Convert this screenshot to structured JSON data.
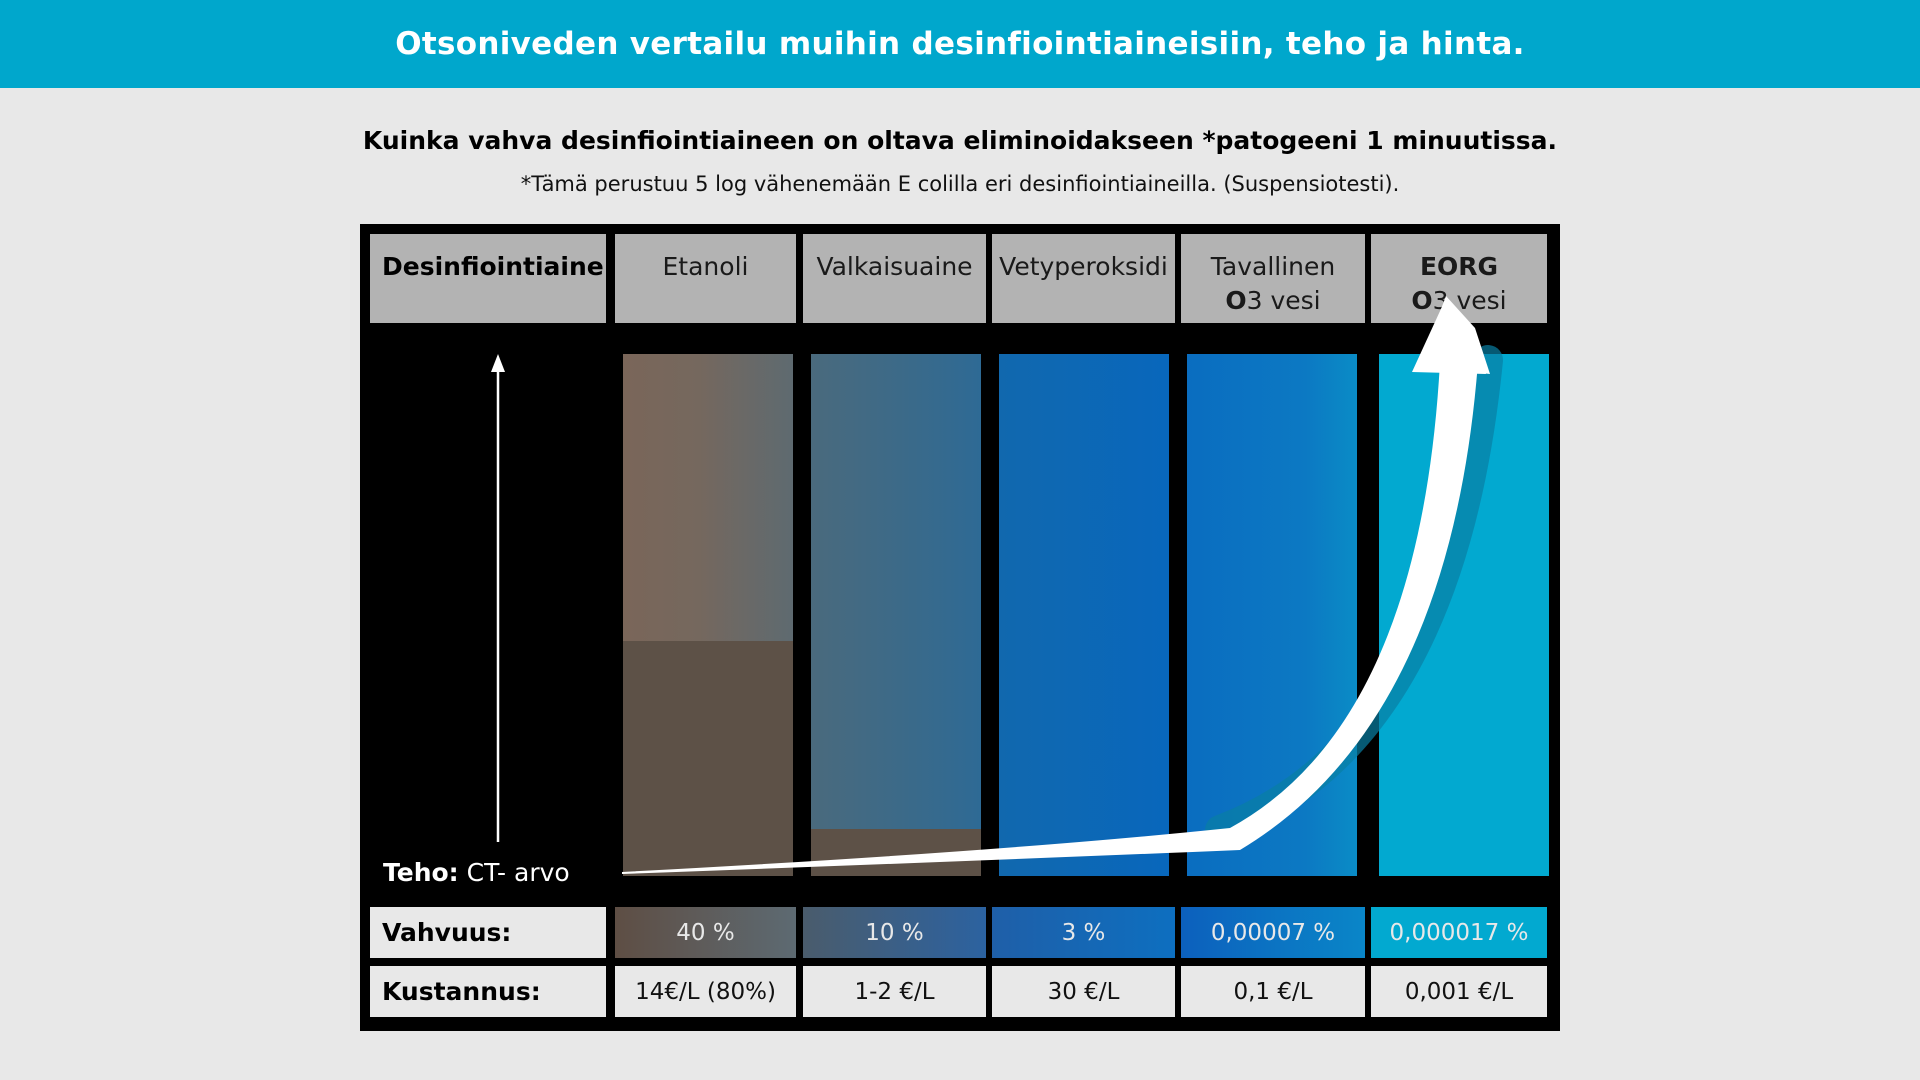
{
  "banner": {
    "title": "Otsoniveden vertailu muihin desinfiointiaineisiin, teho ja hinta."
  },
  "headline": "Kuinka vahva desinfiointiaineen on oltava eliminoidakseen *patogeeni 1 minuutissa.",
  "footnote": "*Tämä perustuu 5 log vähenemään E colilla eri desinfiointiaineilla. (Suspensiotesti).",
  "table": {
    "header_label": "Desinfiointiaine:",
    "columns": [
      {
        "name_bold": "",
        "name": "Etanoli",
        "name2_bold": "",
        "name2": "",
        "strength": "40 %",
        "cost": "14€/L (80%)",
        "level": 0.45
      },
      {
        "name_bold": "",
        "name": "Valkaisuaine",
        "name2_bold": "",
        "name2": "",
        "strength": "10 %",
        "cost": "1-2 €/L",
        "level": 0.09
      },
      {
        "name_bold": "",
        "name": "Vetyperoksidi",
        "name2_bold": "",
        "name2": "",
        "strength": "3 %",
        "cost": "30 €/L",
        "level": 0
      },
      {
        "name_bold": "",
        "name": "Tavallinen",
        "name2_bold": "O",
        "name2": "3 vesi",
        "strength": "0,00007 %",
        "cost": "0,1 €/L",
        "level": 0
      },
      {
        "name_bold": "EORG",
        "name": "",
        "name2_bold": "O",
        "name2": "3 vesi",
        "strength": "0,000017 %",
        "cost": "0,001 €/L",
        "level": 0
      }
    ],
    "axis_label_bold": "Teho:",
    "axis_label": " CT- arvo",
    "row_strength_label": "Vahvuus:",
    "row_cost_label": "Kustannus:"
  },
  "colors": {
    "banner": "#00a7cc",
    "ethanol": "#76675b",
    "bleach": "#466a7f",
    "peroxide": "#0968b4",
    "ozone_regular": "#0a6fbf",
    "ozone_eorg": "#02a9d0"
  }
}
